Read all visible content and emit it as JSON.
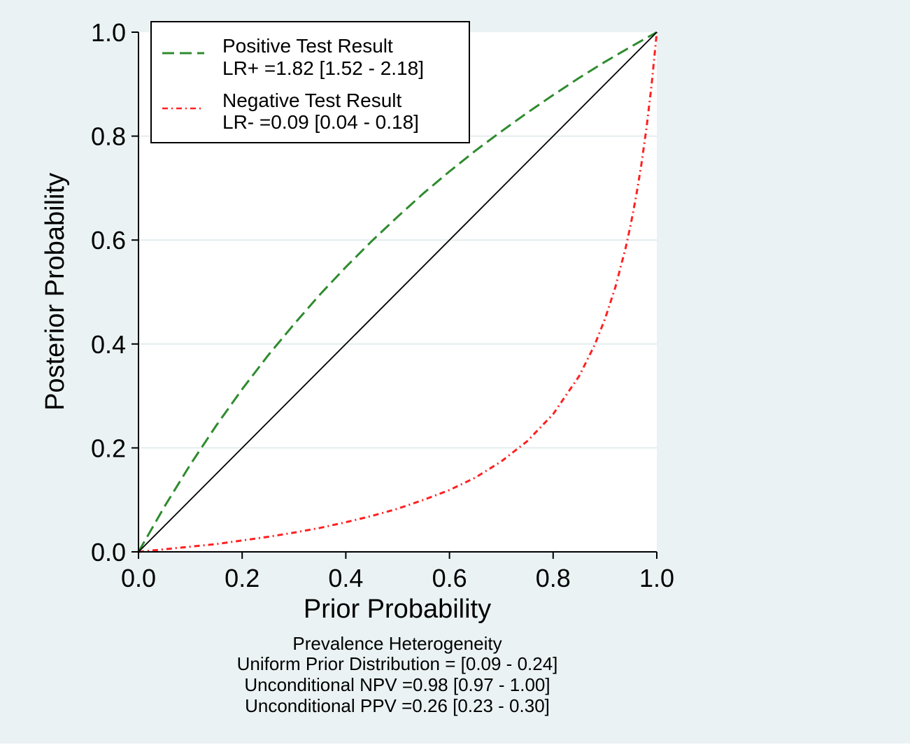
{
  "chart_data": {
    "type": "line",
    "xlabel": "Prior Probability",
    "ylabel": "Posterior Probability",
    "xlim": [
      0.0,
      1.0
    ],
    "ylim": [
      0.0,
      1.0
    ],
    "x_ticks": [
      "0.0",
      "0.2",
      "0.4",
      "0.6",
      "0.8",
      "1.0"
    ],
    "y_ticks": [
      "0.0",
      "0.2",
      "0.4",
      "0.6",
      "0.8",
      "1.0"
    ],
    "grid": true,
    "legend_placement": "top-left",
    "series": [
      {
        "name": "Positive Test Result",
        "label_line2": "LR+ =1.82 [1.52 - 2.18]",
        "color": "#2e8b2e",
        "style": "dashed",
        "x": [
          0.0,
          0.05,
          0.1,
          0.15,
          0.2,
          0.25,
          0.3,
          0.35,
          0.4,
          0.45,
          0.5,
          0.55,
          0.6,
          0.65,
          0.7,
          0.75,
          0.8,
          0.85,
          0.9,
          0.95,
          1.0
        ],
        "y": [
          0.0,
          0.087,
          0.168,
          0.243,
          0.313,
          0.378,
          0.438,
          0.495,
          0.548,
          0.598,
          0.645,
          0.69,
          0.732,
          0.772,
          0.809,
          0.845,
          0.879,
          0.912,
          0.943,
          0.972,
          1.0
        ]
      },
      {
        "name": "Negative Test Result",
        "label_line2": "LR- =0.09 [0.04 - 0.18]",
        "color": "#ff2020",
        "style": "dash-dot",
        "x": [
          0.0,
          0.05,
          0.1,
          0.15,
          0.2,
          0.25,
          0.3,
          0.35,
          0.4,
          0.45,
          0.5,
          0.55,
          0.6,
          0.65,
          0.7,
          0.75,
          0.8,
          0.85,
          0.88,
          0.9,
          0.92,
          0.94,
          0.95,
          0.96,
          0.97,
          0.98,
          0.99,
          1.0
        ],
        "y": [
          0.0,
          0.005,
          0.01,
          0.015,
          0.022,
          0.029,
          0.037,
          0.046,
          0.057,
          0.069,
          0.083,
          0.1,
          0.119,
          0.143,
          0.174,
          0.213,
          0.265,
          0.338,
          0.398,
          0.448,
          0.509,
          0.585,
          0.631,
          0.684,
          0.744,
          0.815,
          0.899,
          1.0
        ]
      },
      {
        "name": "",
        "color": "#000000",
        "style": "solid",
        "x": [
          0.0,
          1.0
        ],
        "y": [
          0.0,
          1.0
        ]
      }
    ],
    "notes": [
      "Prevalence Heterogeneity",
      "Uniform Prior Distribution = [0.09 - 0.24]",
      "Unconditional NPV =0.98 [0.97 - 1.00]",
      "Unconditional PPV =0.26 [0.23 - 0.30]"
    ]
  }
}
